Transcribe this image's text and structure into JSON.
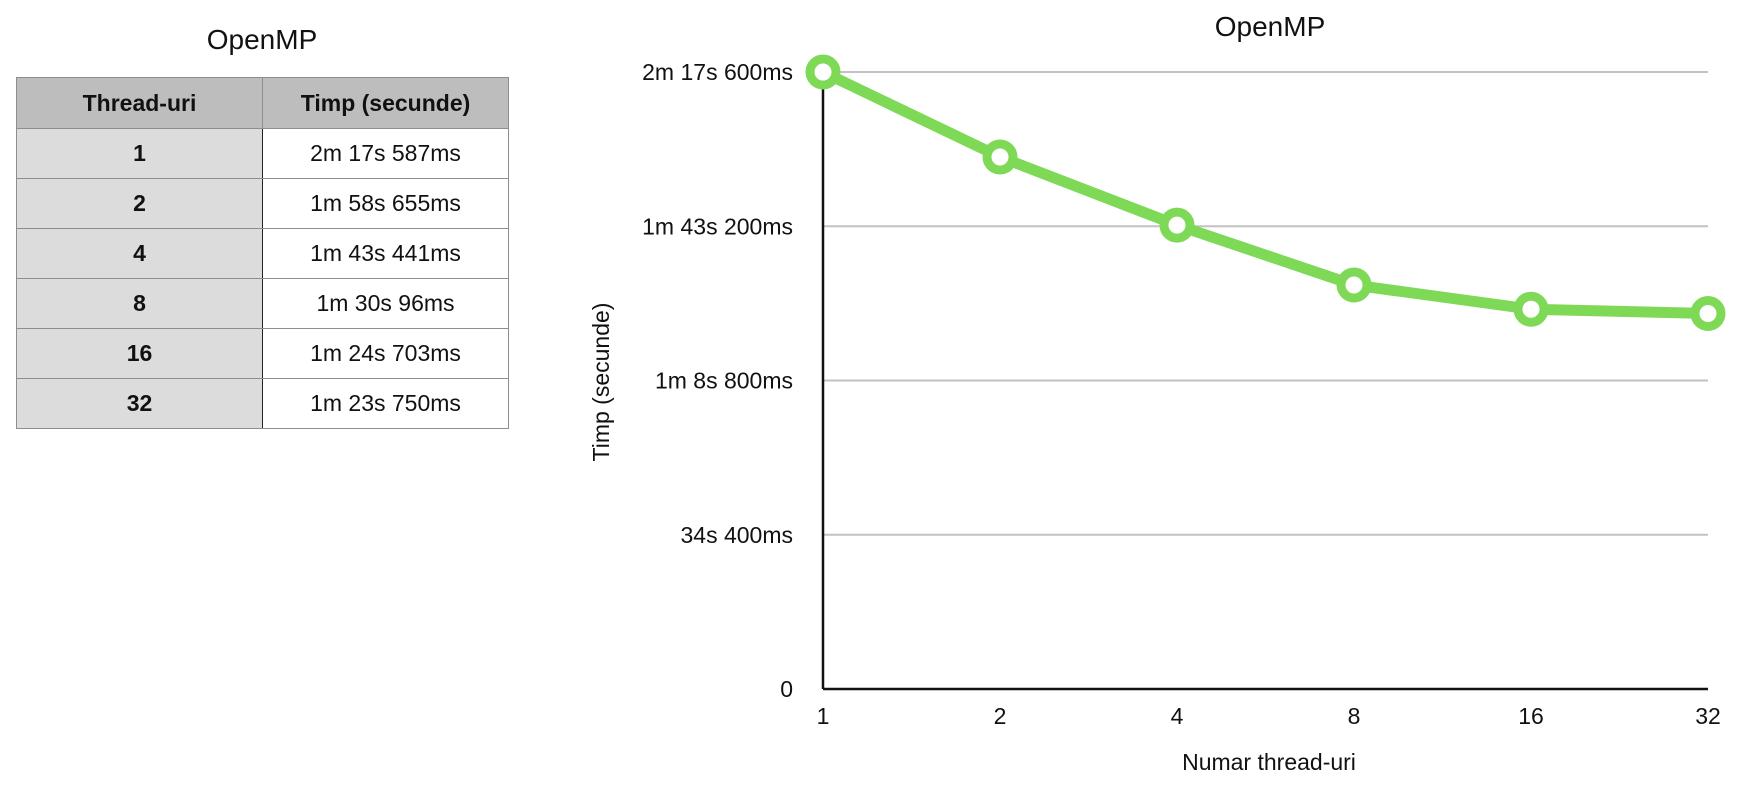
{
  "table": {
    "title": "OpenMP",
    "headers": [
      "Thread-uri",
      "Timp (secunde)"
    ],
    "rows": [
      {
        "threads": "1",
        "time": "2m 17s 587ms"
      },
      {
        "threads": "2",
        "time": "1m 58s 655ms"
      },
      {
        "threads": "4",
        "time": "1m 43s 441ms"
      },
      {
        "threads": "8",
        "time": "1m 30s 96ms"
      },
      {
        "threads": "16",
        "time": "1m 24s 703ms"
      },
      {
        "threads": "32",
        "time": "1m 23s 750ms"
      }
    ]
  },
  "chart_data": {
    "type": "line",
    "title": "OpenMP",
    "xlabel": "Numar thread-uri",
    "ylabel": "Timp (secunde)",
    "categories": [
      "1",
      "2",
      "4",
      "8",
      "16",
      "32"
    ],
    "series": [
      {
        "values": [
          137.587,
          118.655,
          103.441,
          90.096,
          84.703,
          83.75
        ],
        "color": "#7ed957"
      }
    ],
    "ylim": [
      0,
      137.6
    ],
    "yticks": [
      0,
      34.4,
      68.8,
      103.2,
      137.6
    ],
    "ytick_labels": [
      "0",
      "34s 400ms",
      "1m 8s 800ms",
      "1m 43s 200ms",
      "2m 17s 600ms"
    ],
    "grid": true,
    "legend": "none"
  }
}
